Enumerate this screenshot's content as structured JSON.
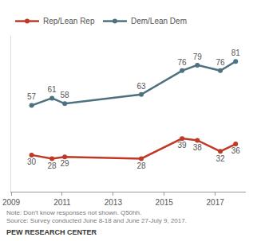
{
  "chart_data": {
    "type": "line",
    "x": [
      2009.8,
      2010.6,
      2011.1,
      2014.1,
      2015.7,
      2016.3,
      2017.2,
      2017.8
    ],
    "series": [
      {
        "name": "Rep/Lean Rep",
        "color": "#bf3927",
        "values": [
          30,
          28,
          29,
          28,
          39,
          38,
          32,
          36
        ]
      },
      {
        "name": "Dem/Lean Dem",
        "color": "#4e7180",
        "values": [
          57,
          61,
          58,
          63,
          76,
          79,
          76,
          81
        ]
      }
    ],
    "xlim": [
      2009,
      2018.2
    ],
    "xticks": [
      2009,
      2011,
      2013,
      2015,
      2017
    ],
    "ylim": [
      10,
      95
    ],
    "yticks": [],
    "tick_labels": "x",
    "grid": false,
    "legend": "top left",
    "data_labels": true,
    "marker": "circle",
    "annotations": [
      "Note: Don't know responses not shown. Q50hh.",
      "Source: Survey conducted June 8-18 and June 27-July 9, 2017.",
      "PEW RESEARCH CENTER"
    ]
  }
}
